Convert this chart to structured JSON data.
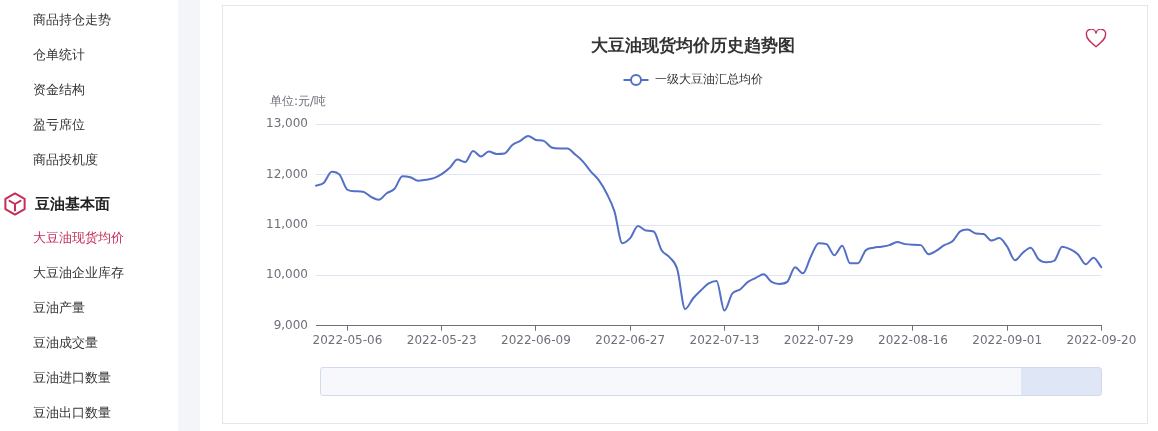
{
  "chart_data": [
    {
      "type": "other",
      "annotations": [
        "商品持仓走势",
        "仓单统计",
        "资金结构",
        "盈亏席位",
        "商品投机度",
        "豆油基本面",
        "大豆油现货均价",
        "大豆油企业库存",
        "豆油产量",
        "豆油成交量",
        "豆油进口数量",
        "豆油出口数量"
      ]
    },
    {
      "type": "line",
      "title": "大豆油现货均价历史趋势图",
      "ylabel": "单位:元/吨",
      "categories": [
        null,
        null,
        null,
        null,
        "2022-05-06",
        null,
        null,
        null,
        null,
        null,
        null,
        null,
        null,
        null,
        null,
        null,
        "2022-05-23",
        null,
        null,
        null,
        null,
        null,
        null,
        null,
        null,
        null,
        null,
        null,
        "2022-06-09",
        null,
        null,
        null,
        null,
        null,
        null,
        null,
        null,
        null,
        null,
        null,
        "2022-06-27",
        null,
        null,
        null,
        null,
        null,
        null,
        null,
        null,
        null,
        null,
        null,
        "2022-07-13",
        null,
        null,
        null,
        null,
        null,
        null,
        null,
        null,
        null,
        null,
        null,
        "2022-07-29",
        null,
        null,
        null,
        null,
        null,
        null,
        null,
        null,
        null,
        null,
        null,
        "2022-08-16",
        null,
        null,
        null,
        null,
        null,
        null,
        null,
        null,
        null,
        null,
        null,
        "2022-09-01",
        null,
        null,
        null,
        null,
        null,
        null,
        null,
        null,
        null,
        null,
        null,
        "2022-09-20"
      ],
      "series": [
        {
          "name": "一级大豆油汇总均价",
          "color": "#5470c6",
          "values": [
            11780,
            11840,
            12060,
            12000,
            11700,
            11670,
            11660,
            11560,
            11500,
            11630,
            11720,
            11970,
            11950,
            11880,
            11900,
            11930,
            12010,
            12130,
            12300,
            12250,
            12470,
            12360,
            12460,
            12410,
            12420,
            12590,
            12670,
            12770,
            12690,
            12670,
            12540,
            12520,
            12520,
            12400,
            12260,
            12060,
            11890,
            11630,
            11270,
            10640,
            10740,
            10980,
            10890,
            10870,
            10500,
            10360,
            10120,
            9330,
            9540,
            9700,
            9840,
            9890,
            9300,
            9640,
            9720,
            9870,
            9950,
            10020,
            9870,
            9830,
            9870,
            10160,
            10040,
            10370,
            10640,
            10620,
            10400,
            10590,
            10240,
            10240,
            10500,
            10550,
            10570,
            10600,
            10660,
            10620,
            10610,
            10600,
            10420,
            10490,
            10600,
            10670,
            10870,
            10910,
            10830,
            10820,
            10690,
            10740,
            10570,
            10300,
            10450,
            10550,
            10320,
            10260,
            10290,
            10570,
            10520,
            10420,
            10220,
            10350,
            10160
          ]
        }
      ],
      "ylim": [
        9000,
        13000
      ],
      "yticks": [
        {
          "value": 9000,
          "label": "9,000"
        },
        {
          "value": 10000,
          "label": "10,000"
        },
        {
          "value": 11000,
          "label": "11,000"
        },
        {
          "value": 12000,
          "label": "12,000"
        },
        {
          "value": 13000,
          "label": "13,000"
        }
      ],
      "grid": "y",
      "legend": "top",
      "marker": "none",
      "line_style": "solid"
    }
  ]
}
